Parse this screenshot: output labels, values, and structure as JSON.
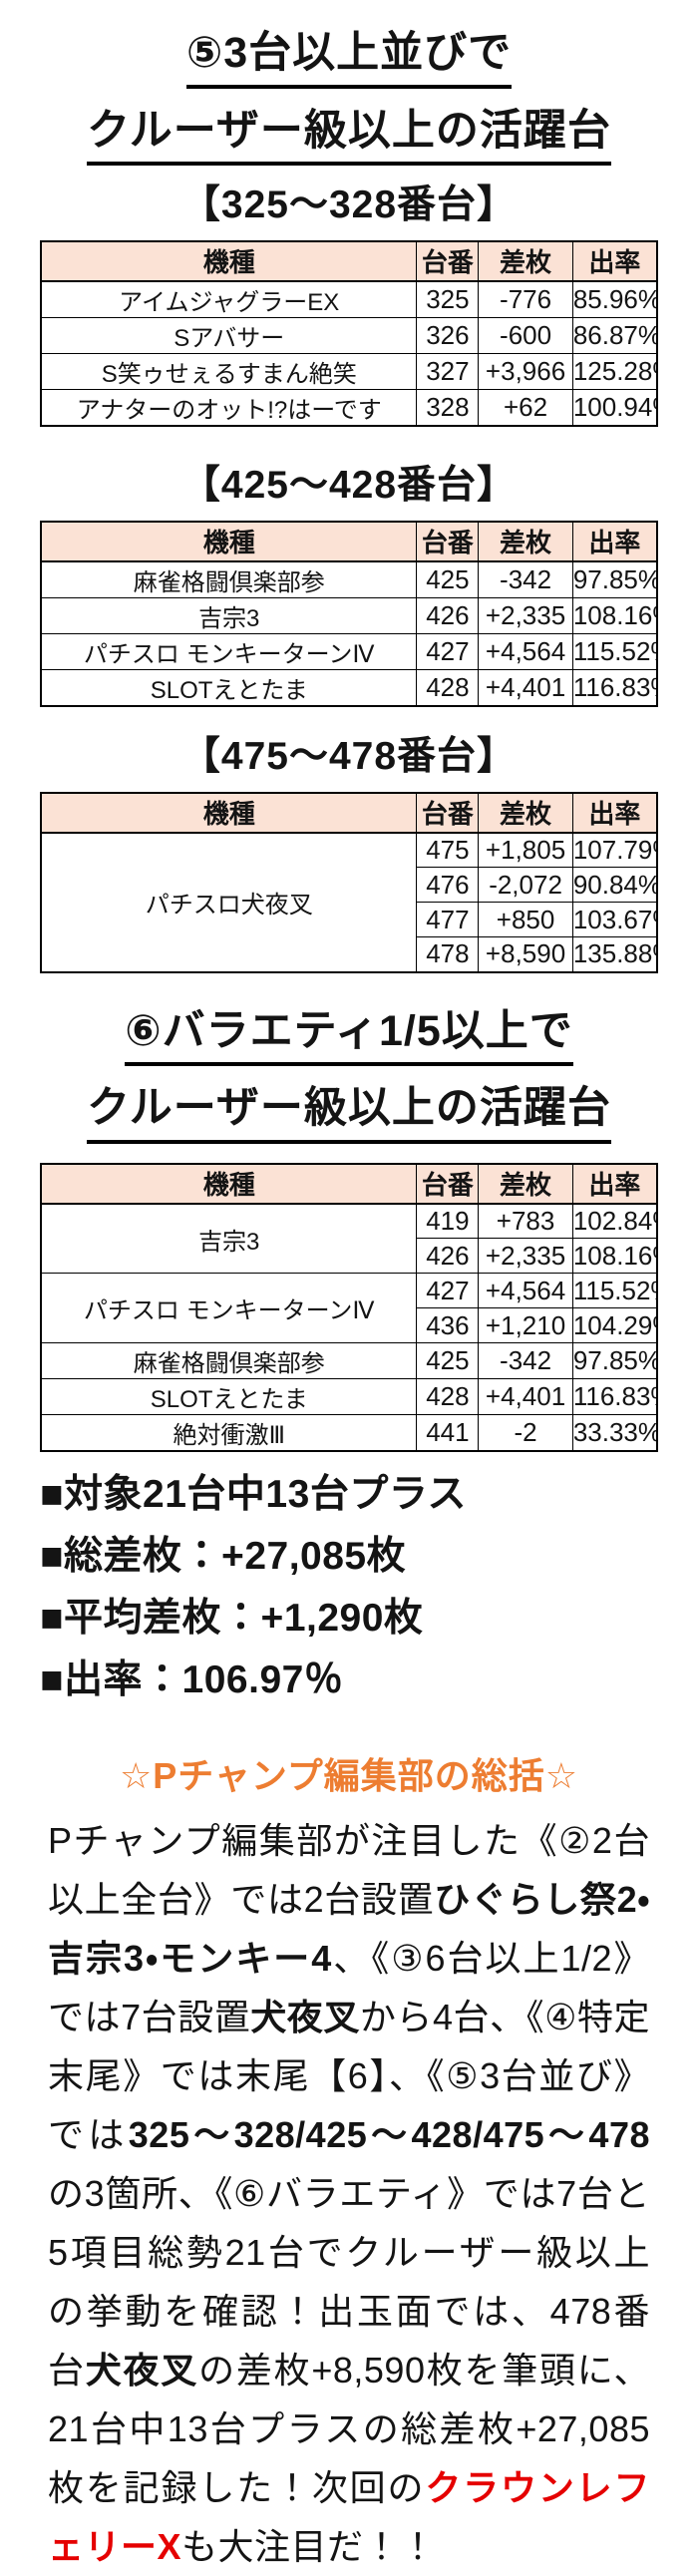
{
  "document": {
    "columns": {
      "machine": "機種",
      "number": "台番",
      "diff": "差枚",
      "rate": "出率"
    },
    "section5": {
      "title_line1": "⑤3台以上並びで",
      "title_line2": "クルーザー級以上の活躍台"
    },
    "table1": {
      "subtitle": "【325～328番台】",
      "rows": [
        {
          "machine": "アイムジャグラーEX",
          "number": "325",
          "diff": "-776",
          "rate": "85.96%"
        },
        {
          "machine": "Sアバサー",
          "number": "326",
          "diff": "-600",
          "rate": "86.87%"
        },
        {
          "machine": "S笑ゥせぇるすまん絶笑",
          "number": "327",
          "diff": "+3,966",
          "rate": "125.28%"
        },
        {
          "machine": "アナターのオット!?はーです",
          "number": "328",
          "diff": "+62",
          "rate": "100.94%"
        }
      ]
    },
    "table2": {
      "subtitle": "【425～428番台】",
      "rows": [
        {
          "machine": "麻雀格闘倶楽部参",
          "number": "425",
          "diff": "-342",
          "rate": "97.85%"
        },
        {
          "machine": "吉宗3",
          "number": "426",
          "diff": "+2,335",
          "rate": "108.16%"
        },
        {
          "machine": "パチスロ モンキーターンⅣ",
          "number": "427",
          "diff": "+4,564",
          "rate": "115.52%"
        },
        {
          "machine": "SLOTえとたま",
          "number": "428",
          "diff": "+4,401",
          "rate": "116.83%"
        }
      ]
    },
    "table3": {
      "subtitle": "【475～478番台】",
      "machine": "パチスロ犬夜叉",
      "rows": [
        {
          "number": "475",
          "diff": "+1,805",
          "rate": "107.79%"
        },
        {
          "number": "476",
          "diff": "-2,072",
          "rate": "90.84%"
        },
        {
          "number": "477",
          "diff": "+850",
          "rate": "103.67%"
        },
        {
          "number": "478",
          "diff": "+8,590",
          "rate": "135.88%"
        }
      ]
    },
    "section6": {
      "title_line1": "⑥バラエティ1/5以上で",
      "title_line2": "クルーザー級以上の活躍台"
    },
    "table4": {
      "rows": [
        {
          "machine": "吉宗3",
          "number": "419",
          "diff": "+783",
          "rate": "102.84%"
        },
        {
          "machine": "",
          "number": "426",
          "diff": "+2,335",
          "rate": "108.16%"
        },
        {
          "machine": "パチスロ モンキーターンⅣ",
          "number": "427",
          "diff": "+4,564",
          "rate": "115.52%"
        },
        {
          "machine": "",
          "number": "436",
          "diff": "+1,210",
          "rate": "104.29%"
        },
        {
          "machine": "麻雀格闘倶楽部参",
          "number": "425",
          "diff": "-342",
          "rate": "97.85%"
        },
        {
          "machine": "SLOTえとたま",
          "number": "428",
          "diff": "+4,401",
          "rate": "116.83%"
        },
        {
          "machine": "絶対衝激Ⅲ",
          "number": "441",
          "diff": "-2",
          "rate": "33.33%"
        }
      ]
    },
    "summary": {
      "lines": [
        "■対象21台中13台プラス",
        "■総差枚：+27,085枚",
        "■平均差枚：+1,290枚",
        "■出率：106.97％"
      ]
    },
    "overview": {
      "heading": "☆Pチャンプ編集部の総括☆",
      "segments": [
        {
          "text": "Pチャンプ編集部が注目した《②2台以上全台》では2台設置",
          "style": "normal"
        },
        {
          "text": "ひぐらし祭2・吉宗3・モンキー4",
          "style": "bold"
        },
        {
          "text": "、《③6台以上1/2》では7台設置",
          "style": "normal"
        },
        {
          "text": "犬夜叉",
          "style": "bold"
        },
        {
          "text": "から4台、《④特定末尾》では末尾【6】、《⑤3台並び》では",
          "style": "normal"
        },
        {
          "text": "325～328/425～428/475～478",
          "style": "bold"
        },
        {
          "text": "の3箇所、《⑥バラエティ》では7台と5項目総勢21台でクルーザー級以上の挙動を確認！出玉面では、478番台",
          "style": "normal"
        },
        {
          "text": "犬夜叉",
          "style": "bold"
        },
        {
          "text": "の差枚+8,590枚を筆頭に、21台中13台プラスの総差枚+27,085枚を記録した！次回の",
          "style": "normal"
        },
        {
          "text": "クラウンレフェリーX",
          "style": "bold-red"
        },
        {
          "text": "も大注目だ！！",
          "style": "normal"
        }
      ]
    },
    "colors": {
      "accent_orange": "#ED7D31",
      "highlight_red": "#E50000",
      "table_header_bg": "#FBE2D5"
    }
  }
}
